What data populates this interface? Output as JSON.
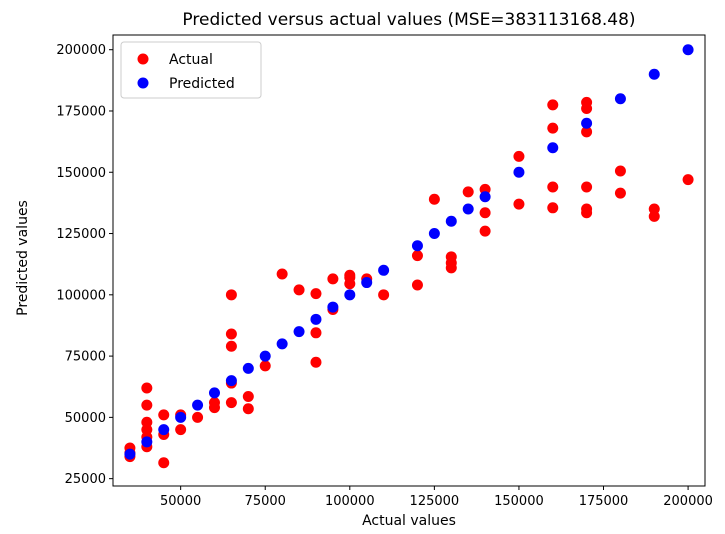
{
  "chart_data": {
    "type": "scatter",
    "title": "Predicted versus actual values (MSE=383113168.48)",
    "xlabel": "Actual values",
    "ylabel": "Predicted values",
    "xlim": [
      30000,
      205000
    ],
    "ylim": [
      22000,
      206000
    ],
    "x_ticks": [
      50000,
      75000,
      100000,
      125000,
      150000,
      175000,
      200000
    ],
    "y_ticks": [
      25000,
      50000,
      75000,
      100000,
      125000,
      150000,
      175000,
      200000
    ],
    "x_tick_labels": [
      "50000",
      "75000",
      "100000",
      "125000",
      "150000",
      "175000",
      "200000"
    ],
    "y_tick_labels": [
      "25000",
      "50000",
      "75000",
      "100000",
      "125000",
      "150000",
      "175000",
      "200000"
    ],
    "grid": false,
    "legend_position": "top-left",
    "series": [
      {
        "name": "Actual",
        "color": "#ff0000",
        "points": [
          [
            35000,
            37500
          ],
          [
            35000,
            34000
          ],
          [
            35000,
            35500
          ],
          [
            40000,
            38000
          ],
          [
            40000,
            42000
          ],
          [
            40000,
            45000
          ],
          [
            40000,
            48000
          ],
          [
            40000,
            55000
          ],
          [
            40000,
            62000
          ],
          [
            45000,
            31500
          ],
          [
            45000,
            43000
          ],
          [
            45000,
            51000
          ],
          [
            50000,
            45000
          ],
          [
            50000,
            51000
          ],
          [
            55000,
            50000
          ],
          [
            60000,
            54000
          ],
          [
            60000,
            56000
          ],
          [
            65000,
            56000
          ],
          [
            65000,
            64000
          ],
          [
            65000,
            79000
          ],
          [
            65000,
            84000
          ],
          [
            65000,
            100000
          ],
          [
            70000,
            53500
          ],
          [
            70000,
            58500
          ],
          [
            75000,
            71000
          ],
          [
            80000,
            108500
          ],
          [
            85000,
            102000
          ],
          [
            90000,
            72500
          ],
          [
            90000,
            84500
          ],
          [
            90000,
            100500
          ],
          [
            95000,
            94000
          ],
          [
            95000,
            106500
          ],
          [
            100000,
            104500
          ],
          [
            100000,
            107000
          ],
          [
            100000,
            108000
          ],
          [
            105000,
            106500
          ],
          [
            110000,
            100000
          ],
          [
            120000,
            104000
          ],
          [
            120000,
            116000
          ],
          [
            125000,
            139000
          ],
          [
            130000,
            111000
          ],
          [
            130000,
            113000
          ],
          [
            130000,
            115500
          ],
          [
            135000,
            142000
          ],
          [
            140000,
            126000
          ],
          [
            140000,
            133500
          ],
          [
            140000,
            143000
          ],
          [
            150000,
            137000
          ],
          [
            150000,
            156500
          ],
          [
            160000,
            135500
          ],
          [
            160000,
            144000
          ],
          [
            160000,
            168000
          ],
          [
            160000,
            177500
          ],
          [
            170000,
            133500
          ],
          [
            170000,
            135000
          ],
          [
            170000,
            144000
          ],
          [
            170000,
            166500
          ],
          [
            170000,
            176000
          ],
          [
            170000,
            178500
          ],
          [
            180000,
            141500
          ],
          [
            180000,
            150500
          ],
          [
            190000,
            132000
          ],
          [
            190000,
            135000
          ],
          [
            200000,
            147000
          ]
        ]
      },
      {
        "name": "Predicted",
        "color": "#0000ff",
        "points": [
          [
            35000,
            35000
          ],
          [
            40000,
            40000
          ],
          [
            45000,
            45000
          ],
          [
            50000,
            50000
          ],
          [
            55000,
            55000
          ],
          [
            60000,
            60000
          ],
          [
            65000,
            65000
          ],
          [
            70000,
            70000
          ],
          [
            75000,
            75000
          ],
          [
            80000,
            80000
          ],
          [
            85000,
            85000
          ],
          [
            90000,
            90000
          ],
          [
            95000,
            95000
          ],
          [
            100000,
            100000
          ],
          [
            105000,
            105000
          ],
          [
            110000,
            110000
          ],
          [
            120000,
            120000
          ],
          [
            125000,
            125000
          ],
          [
            130000,
            130000
          ],
          [
            135000,
            135000
          ],
          [
            140000,
            140000
          ],
          [
            150000,
            150000
          ],
          [
            160000,
            160000
          ],
          [
            170000,
            170000
          ],
          [
            180000,
            180000
          ],
          [
            190000,
            190000
          ],
          [
            200000,
            200000
          ]
        ]
      }
    ]
  }
}
